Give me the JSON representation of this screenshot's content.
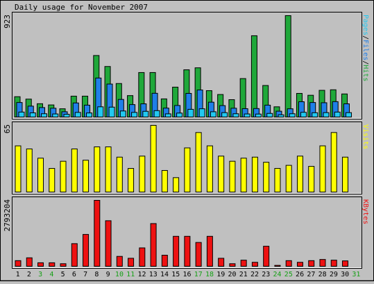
{
  "chart_data": {
    "type": "bar",
    "title": "Daily usage for November 2007",
    "days": [
      "1",
      "2",
      "3",
      "4",
      "5",
      "6",
      "7",
      "8",
      "9",
      "10",
      "11",
      "12",
      "13",
      "14",
      "15",
      "16",
      "17",
      "18",
      "19",
      "20",
      "21",
      "22",
      "23",
      "24",
      "25",
      "26",
      "27",
      "28",
      "29",
      "30",
      "31"
    ],
    "weekend_days": [
      "3",
      "4",
      "10",
      "11",
      "17",
      "18",
      "24",
      "25"
    ],
    "colors": {
      "hits": "#1fa83a",
      "files": "#1f7fe8",
      "pages": "#22c8f0",
      "visits": "#ffff00",
      "kbytes": "#ee1111",
      "weekday_label": "#000000",
      "weekend_label": "#15a015",
      "last_day_label": "#15a015"
    },
    "hits_chart": {
      "ymax": 923,
      "ytick": "923",
      "series": [
        {
          "name": "Hits",
          "values": [
            185,
            163,
            121,
            110,
            75,
            190,
            190,
            560,
            460,
            305,
            195,
            405,
            405,
            165,
            272,
            430,
            448,
            240,
            205,
            158,
            350,
            740,
            287,
            93,
            923,
            215,
            198,
            243,
            248,
            210,
            0
          ]
        },
        {
          "name": "Files",
          "values": [
            132,
            99,
            86,
            80,
            48,
            128,
            108,
            355,
            300,
            160,
            113,
            120,
            216,
            81,
            105,
            215,
            246,
            135,
            104,
            80,
            76,
            77,
            108,
            53,
            75,
            139,
            132,
            130,
            140,
            120,
            0
          ]
        },
        {
          "name": "Pages",
          "values": [
            45,
            38,
            30,
            28,
            25,
            42,
            37,
            93,
            90,
            55,
            42,
            52,
            58,
            29,
            36,
            70,
            75,
            48,
            40,
            30,
            28,
            27,
            33,
            20,
            30,
            43,
            39,
            40,
            45,
            40,
            0
          ]
        }
      ],
      "legend": [
        {
          "text": "Pages",
          "color": "#22c8f0"
        },
        {
          "text": "/",
          "color": "#000000"
        },
        {
          "text": "Files",
          "color": "#1f7fe8"
        },
        {
          "text": "/",
          "color": "#000000"
        },
        {
          "text": "Hits",
          "color": "#1fa83a"
        }
      ]
    },
    "visits_chart": {
      "ymax": 65,
      "ytick": "65",
      "series": [
        {
          "name": "Visits",
          "values": [
            45,
            42,
            33,
            23,
            30,
            42,
            31,
            44,
            44,
            34,
            23,
            35,
            65,
            21,
            14,
            43,
            58,
            45,
            35,
            30,
            33,
            34,
            29,
            23,
            26,
            35,
            25,
            45,
            58,
            34,
            0
          ]
        }
      ],
      "legend": [
        {
          "text": "Visits",
          "color": "#ffff00"
        }
      ]
    },
    "kbytes_chart": {
      "ymax": 2793204,
      "ytick": "2793204",
      "series": [
        {
          "name": "KBytes",
          "values": [
            240000,
            360000,
            150000,
            150000,
            110000,
            960000,
            1350000,
            2793204,
            1930000,
            420000,
            340000,
            780000,
            1810000,
            470000,
            1270000,
            1270000,
            1010000,
            1270000,
            340000,
            110000,
            260000,
            170000,
            850000,
            40000,
            240000,
            170000,
            240000,
            290000,
            260000,
            230000,
            0
          ]
        }
      ],
      "legend": [
        {
          "text": "KBytes",
          "color": "#ee1111"
        }
      ]
    }
  }
}
